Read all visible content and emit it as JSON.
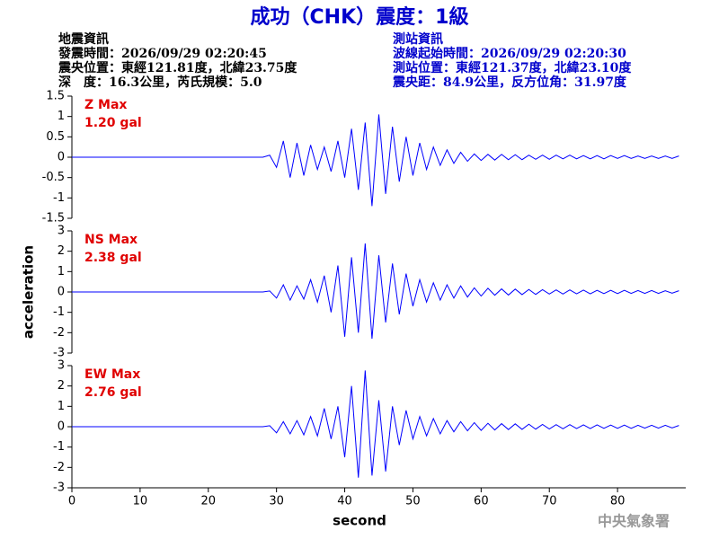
{
  "header": {
    "title": "成功（CHK）震度：1級",
    "left": [
      "地震資訊",
      "發震時間：2026/09/29 02:20:45",
      "震央位置：東經121.81度，北緯23.75度",
      "深　度：16.3公里，芮氏規模：5.0"
    ],
    "right": [
      "測站資訊",
      "波線起始時間：2026/09/29 02:20:30",
      "測站位置：東經121.37度，北緯23.10度",
      "震央距：84.9公里，反方位角：31.97度"
    ],
    "footer": "中央氣象署"
  },
  "chart_data": [
    {
      "type": "line",
      "annotations": [
        "Z Max",
        "1.20 gal"
      ],
      "color": "#0000ff",
      "xlim": [
        0,
        90
      ],
      "ylim": [
        -1.5,
        1.5
      ],
      "yticks": [
        -1.5,
        -1,
        -0.5,
        0,
        0.5,
        1,
        1.5
      ],
      "x": [
        0,
        1,
        2,
        3,
        4,
        5,
        6,
        7,
        8,
        9,
        10,
        11,
        12,
        13,
        14,
        15,
        16,
        17,
        18,
        19,
        20,
        21,
        22,
        23,
        24,
        25,
        26,
        27,
        28,
        29,
        30,
        31,
        32,
        33,
        34,
        35,
        36,
        37,
        38,
        39,
        40,
        41,
        42,
        43,
        44,
        45,
        46,
        47,
        48,
        49,
        50,
        51,
        52,
        53,
        54,
        55,
        56,
        57,
        58,
        59,
        60,
        61,
        62,
        63,
        64,
        65,
        66,
        67,
        68,
        69,
        70,
        71,
        72,
        73,
        74,
        75,
        76,
        77,
        78,
        79,
        80,
        81,
        82,
        83,
        84,
        85,
        86,
        87,
        88,
        89
      ],
      "values": [
        0,
        0,
        0,
        0,
        0,
        0,
        0,
        0,
        0,
        0,
        0,
        0,
        0,
        0,
        0,
        0,
        0,
        0,
        0,
        0,
        0,
        0,
        0,
        0,
        0,
        0,
        0,
        0,
        0,
        0.05,
        -0.25,
        0.4,
        -0.5,
        0.35,
        -0.45,
        0.3,
        -0.3,
        0.25,
        -0.35,
        0.4,
        -0.5,
        0.7,
        -0.8,
        0.85,
        -1.2,
        1.05,
        -0.9,
        0.75,
        -0.6,
        0.5,
        -0.45,
        0.35,
        -0.3,
        0.25,
        -0.2,
        0.18,
        -0.15,
        0.12,
        -0.1,
        0.08,
        -0.08,
        0.07,
        -0.07,
        0.07,
        -0.06,
        0.06,
        -0.06,
        0.05,
        -0.05,
        0.05,
        -0.05,
        0.05,
        -0.04,
        0.05,
        -0.04,
        0.04,
        -0.04,
        0.04,
        -0.04,
        0.04,
        -0.03,
        0.04,
        -0.03,
        0.03,
        -0.03,
        0.03,
        -0.03,
        0.03,
        -0.03,
        0.03
      ]
    },
    {
      "type": "line",
      "annotations": [
        "NS Max",
        "2.38 gal"
      ],
      "color": "#0000ff",
      "ylabel": "acceleration",
      "xlim": [
        0,
        90
      ],
      "ylim": [
        -3,
        3
      ],
      "yticks": [
        -3,
        -2,
        -1,
        0,
        1,
        2,
        3
      ],
      "x": [
        0,
        1,
        2,
        3,
        4,
        5,
        6,
        7,
        8,
        9,
        10,
        11,
        12,
        13,
        14,
        15,
        16,
        17,
        18,
        19,
        20,
        21,
        22,
        23,
        24,
        25,
        26,
        27,
        28,
        29,
        30,
        31,
        32,
        33,
        34,
        35,
        36,
        37,
        38,
        39,
        40,
        41,
        42,
        43,
        44,
        45,
        46,
        47,
        48,
        49,
        50,
        51,
        52,
        53,
        54,
        55,
        56,
        57,
        58,
        59,
        60,
        61,
        62,
        63,
        64,
        65,
        66,
        67,
        68,
        69,
        70,
        71,
        72,
        73,
        74,
        75,
        76,
        77,
        78,
        79,
        80,
        81,
        82,
        83,
        84,
        85,
        86,
        87,
        88,
        89
      ],
      "values": [
        0,
        0,
        0,
        0,
        0,
        0,
        0,
        0,
        0,
        0,
        0,
        0,
        0,
        0,
        0,
        0,
        0,
        0,
        0,
        0,
        0,
        0,
        0,
        0,
        0,
        0,
        0,
        0,
        0,
        0.05,
        -0.3,
        0.35,
        -0.4,
        0.3,
        -0.35,
        0.6,
        -0.5,
        0.8,
        -1.0,
        1.3,
        -2.2,
        1.7,
        -2.0,
        2.38,
        -2.3,
        1.8,
        -1.5,
        1.4,
        -1.1,
        0.9,
        -0.7,
        0.6,
        -0.5,
        0.45,
        -0.4,
        0.35,
        -0.3,
        0.3,
        -0.25,
        0.2,
        -0.2,
        0.18,
        -0.16,
        0.15,
        -0.15,
        0.14,
        -0.13,
        0.12,
        -0.12,
        0.11,
        -0.1,
        0.1,
        -0.1,
        0.1,
        -0.09,
        0.09,
        -0.09,
        0.08,
        -0.08,
        0.08,
        -0.08,
        0.08,
        -0.07,
        0.07,
        -0.07,
        0.07,
        -0.07,
        0.06,
        -0.06,
        0.06
      ]
    },
    {
      "type": "line",
      "annotations": [
        "EW Max",
        "2.76 gal"
      ],
      "color": "#0000ff",
      "xlabel": "second",
      "xlim": [
        0,
        90
      ],
      "xticks": [
        0,
        10,
        20,
        30,
        40,
        50,
        60,
        70,
        80
      ],
      "ylim": [
        -3,
        3
      ],
      "yticks": [
        -3,
        -2,
        -1,
        0,
        1,
        2,
        3
      ],
      "x": [
        0,
        1,
        2,
        3,
        4,
        5,
        6,
        7,
        8,
        9,
        10,
        11,
        12,
        13,
        14,
        15,
        16,
        17,
        18,
        19,
        20,
        21,
        22,
        23,
        24,
        25,
        26,
        27,
        28,
        29,
        30,
        31,
        32,
        33,
        34,
        35,
        36,
        37,
        38,
        39,
        40,
        41,
        42,
        43,
        44,
        45,
        46,
        47,
        48,
        49,
        50,
        51,
        52,
        53,
        54,
        55,
        56,
        57,
        58,
        59,
        60,
        61,
        62,
        63,
        64,
        65,
        66,
        67,
        68,
        69,
        70,
        71,
        72,
        73,
        74,
        75,
        76,
        77,
        78,
        79,
        80,
        81,
        82,
        83,
        84,
        85,
        86,
        87,
        88,
        89
      ],
      "values": [
        0,
        0,
        0,
        0,
        0,
        0,
        0,
        0,
        0,
        0,
        0,
        0,
        0,
        0,
        0,
        0,
        0,
        0,
        0,
        0,
        0,
        0,
        0,
        0,
        0,
        0,
        0,
        0,
        0,
        0.05,
        -0.3,
        0.25,
        -0.35,
        0.3,
        -0.4,
        0.5,
        -0.45,
        0.9,
        -0.6,
        1.0,
        -1.5,
        2.0,
        -2.5,
        2.76,
        -2.4,
        1.3,
        -2.2,
        1.0,
        -0.9,
        0.8,
        -0.6,
        0.5,
        -0.45,
        0.4,
        -0.35,
        0.3,
        -0.25,
        0.25,
        -0.2,
        0.2,
        -0.18,
        0.17,
        -0.16,
        0.15,
        -0.14,
        0.14,
        -0.13,
        0.12,
        -0.12,
        0.11,
        -0.11,
        0.1,
        -0.1,
        0.1,
        -0.09,
        0.09,
        -0.09,
        0.09,
        -0.08,
        0.08,
        -0.08,
        0.08,
        -0.08,
        0.07,
        -0.07,
        0.07,
        -0.07,
        0.07,
        -0.06,
        0.06
      ]
    }
  ]
}
